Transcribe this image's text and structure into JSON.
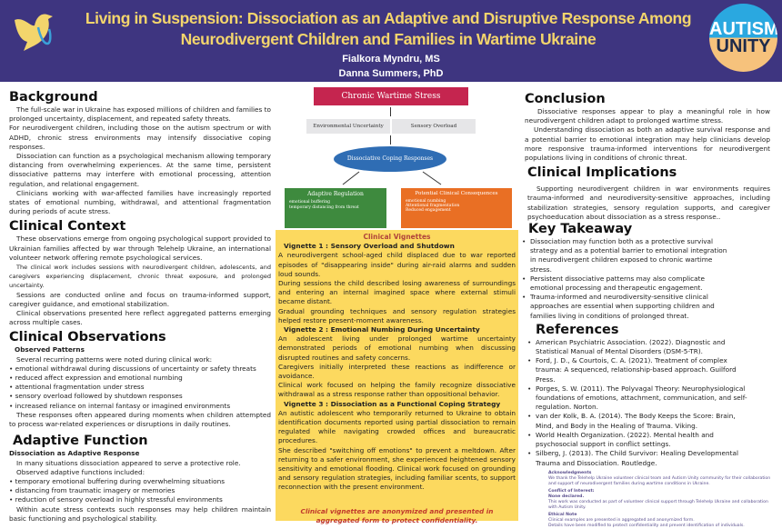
{
  "header": {
    "title": "Living in Suspension: Dissociation as an Adaptive and Disruptive Response Among Neurodivergent Children and Families in Wartime Ukraine",
    "authors": [
      "Fialkora Myndru, MS",
      "Danna Summers, PhD"
    ],
    "logo_right": "AUTISM UNITY",
    "colors": {
      "header_bg": "#3e3580",
      "title": "#f3d56c",
      "vignette_bg": "#fcd95f"
    }
  },
  "background": {
    "heading": "Background",
    "paragraphs": [
      "The full-scale war in Ukraine has exposed millions of children and families to prolonged uncertainty, displacement, and repeated safety threats.",
      "For neurodivergent children, including those on the autism spectrum or with ADHD, chronic stress environments may intensify dissociative coping responses.",
      "Dissociation can function as a psychological mechanism allowing temporary distancing from overwhelming experiences. At the same time, persistent dissociative patterns may interfere with emotional processing, attention regulation, and relational engagement.",
      "Clinicians working with war-affected families have increasingly reported states of emotional numbing, withdrawal, and attentional fragmentation during periods of acute stress."
    ]
  },
  "clinical_context": {
    "heading": "Clinical Context",
    "paragraphs": [
      "These observations emerge from ongoing psychological support provided to Ukrainian families affected by war through Telehelp Ukraine, an international volunteer network offering remote psychological services.",
      "The clinical work includes sessions with neurodivergent children, adolescents, and caregivers experiencing displacement, chronic threat exposure, and prolonged uncertainty.",
      "Sessions are conducted online and focus on trauma-informed support, caregiver guidance, and emotional stabilization.",
      "Clinical observations presented here reflect aggregated patterns emerging across multiple cases."
    ]
  },
  "clinical_observations": {
    "heading": "Clinical Observations",
    "subheading": "Observed Patterns",
    "intro": "Several recurring patterns were noted during clinical work:",
    "items": [
      "• emotional withdrawal during discussions of uncertainty or safety threats",
      "• reduced affect expression and emotional numbing",
      "• attentional fragmentation under stress",
      "• sensory overload followed by shutdown responses",
      "• increased reliance on internal fantasy or imagined environments"
    ],
    "outro": "These responses often appeared during moments when children attempted to process war-related experiences or disruptions in daily routines."
  },
  "adaptive_function": {
    "heading": "Adaptive Function",
    "subheading": "Dissociation as Adaptive Response",
    "intro1": "In many situations dissociation appeared to serve a protective role.",
    "intro2": "Observed adaptive functions included:",
    "items": [
      "• temporary emotional buffering during overwhelming situations",
      "• distancing from traumatic imagery or memories",
      "• reduction of sensory overload in highly stressful environments"
    ],
    "outro": "Within acute stress contexts such responses may help children maintain basic functioning and psychological stability."
  },
  "diagram": {
    "top": "Chronic Wartime Stress",
    "factors": [
      "Environmental Uncertainty",
      "Sensory Overload"
    ],
    "center": "Dissociative Coping Responses",
    "left": {
      "title": "Adaptive Regulation",
      "items": [
        "emotional buffering",
        "temporary distancing from threat"
      ]
    },
    "right": {
      "title": "Potential Clinical Consequences",
      "items": [
        "emotional numbing",
        "Attentional fragmentation",
        "Reduced engagement"
      ]
    }
  },
  "vignettes": {
    "heading": "Clinical Vignettes",
    "items": [
      {
        "title": "Vignette 1 : Sensory Overload and Shutdown",
        "paragraphs": [
          "A neurodivergent school-aged child displaced due to war reported episodes of \"disappearing inside\" during air-raid alarms and sudden loud sounds.",
          "During sessions the child described losing awareness of surroundings and entering an internal imagined space where external stimuli became distant.",
          "Gradual grounding techniques and sensory regulation strategies helped restore present-moment awareness."
        ]
      },
      {
        "title": "Vignette 2 : Emotional Numbing During Uncertainty",
        "paragraphs": [
          "An adolescent living under prolonged wartime uncertainty demonstrated periods of emotional numbing when discussing disrupted routines and safety concerns.",
          "Caregivers initially interpreted these reactions as indifference or avoidance.",
          "Clinical work focused on helping the family recognize dissociative withdrawal as a stress response rather than oppositional behavior."
        ]
      },
      {
        "title": "Vignette 3 : Dissociation as a Functional Coping Strategy",
        "paragraphs": [
          "An autistic adolescent who temporarily returned to Ukraine to obtain identification documents reported using partial dissociation to remain regulated while navigating crowded offices and bureaucratic procedures.",
          "She described \"switching off emotions\" to prevent a meltdown. After returning to a safer environment, she experienced heightened sensory sensitivity and emotional flooding. Clinical work focused on grounding and sensory regulation strategies, including familiar scents, to support reconnection with the present environment."
        ]
      }
    ],
    "note": "Clinical vignettes are anonymized and presented in aggregated form to protect confidentiality."
  },
  "conclusion": {
    "heading": "Conclusion",
    "paragraphs": [
      "Dissociative responses appear to play a meaningful role in how neurodivergent children adapt to prolonged wartime stress.",
      "Understanding dissociation as both an adaptive survival response and a potential barrier to emotional integration may help clinicians develop more responsive trauma-informed interventions for neurodivergent populations living in conditions of chronic threat."
    ]
  },
  "implications": {
    "heading": "Clinical Implications",
    "text": "Supporting neurodivergent children in war environments requires trauma-informed and neurodiversity-sensitive approaches, including stabilization strategies, sensory regulation supports, and caregiver psychoeducation about dissociation as a stress response.."
  },
  "takeaway": {
    "heading": "Key Takeaway",
    "items": [
      "Dissociation may function both as a protective survival strategy and as a potential barrier to emotional integration in neurodivergent children exposed to chronic wartime stress.",
      "Persistent dissociative patterns may also complicate emotional processing and therapeutic engagement.",
      "Trauma-informed and neurodiversity-sensitive clinical approaches are essential when supporting children and families living in conditions of prolonged threat."
    ]
  },
  "references": {
    "heading": "References",
    "items": [
      "American Psychiatric Association. (2022). Diagnostic and Statistical Manual of Mental Disorders (DSM-5-TR).",
      "Ford, J. D., & Courtois, C. A. (2021). Treatment of complex trauma: A sequenced, relationship-based approach. Guilford Press.",
      "Porges, S. W. (2011). The Polyvagal Theory: Neurophysiological foundations of emotions, attachment, communication, and self-regulation. Norton.",
      "van der Kolk, B. A. (2014). The Body Keeps the Score: Brain, Mind, and Body in the Healing of Trauma. Viking.",
      "World Health Organization. (2022). Mental health and psychosocial support in conflict settings.",
      "Silberg, J. (2013). The Child Survivor: Healing Developmental Trauma and Dissociation. Routledge."
    ]
  },
  "acknowledgments": {
    "heading": "Acknowledgments",
    "text": "We thank the Telehelp Ukraine volunteer clinical team and Autism Unity community for their collaboration and support of neurodivergent families during wartime conditions in Ukraine.",
    "coi_heading": "Conflict of Interest:",
    "coi_value": "None declared.",
    "coi_text": "This work was conducted as part of volunteer clinical support through Telehelp Ukraine and collaboration with Autism Unity.",
    "ethics_heading": "Ethical Note",
    "ethics_text1": "Clinical examples are presented in aggregated and anonymized form.",
    "ethics_text2": "Details have been modified to protect confidentiality and prevent identification of individuals."
  }
}
